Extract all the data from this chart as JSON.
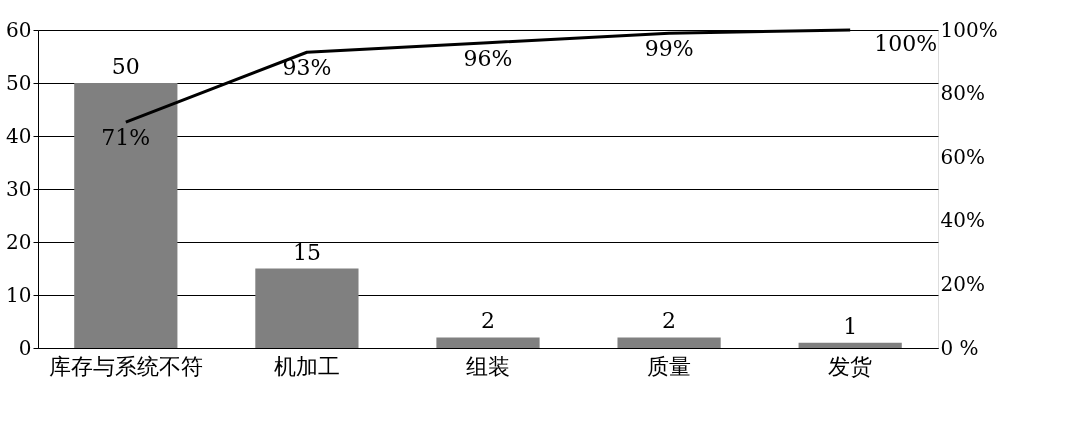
{
  "chart_data": {
    "type": "bar",
    "categories": [
      "库存与系统不符",
      "机加工",
      "组装",
      "质量",
      "发货"
    ],
    "series": [
      {
        "color": "#808080",
        "values": [
          50,
          15,
          2,
          2,
          1
        ],
        "value_labels": [
          "50",
          "15",
          "2",
          "2",
          "1"
        ]
      },
      {
        "type": "line",
        "axis": "y2",
        "color": "#000000",
        "values": [
          71,
          93,
          96,
          99,
          100
        ],
        "value_labels": [
          "71%",
          "93%",
          "96%",
          "99%",
          "100%"
        ]
      }
    ],
    "ylim": [
      0,
      60
    ],
    "yticks": [
      0,
      10,
      20,
      30,
      40,
      50,
      60
    ],
    "y2lim": [
      0,
      100
    ],
    "y2ticks": [
      {
        "value": 0,
        "label": "0 %"
      },
      {
        "value": 20,
        "label": "20%"
      },
      {
        "value": 40,
        "label": "40%"
      },
      {
        "value": 60,
        "label": "60%"
      },
      {
        "value": 80,
        "label": "80%"
      },
      {
        "value": 100,
        "label": "100%"
      }
    ],
    "grid": "y",
    "marker": "none",
    "line_style": "solid"
  }
}
